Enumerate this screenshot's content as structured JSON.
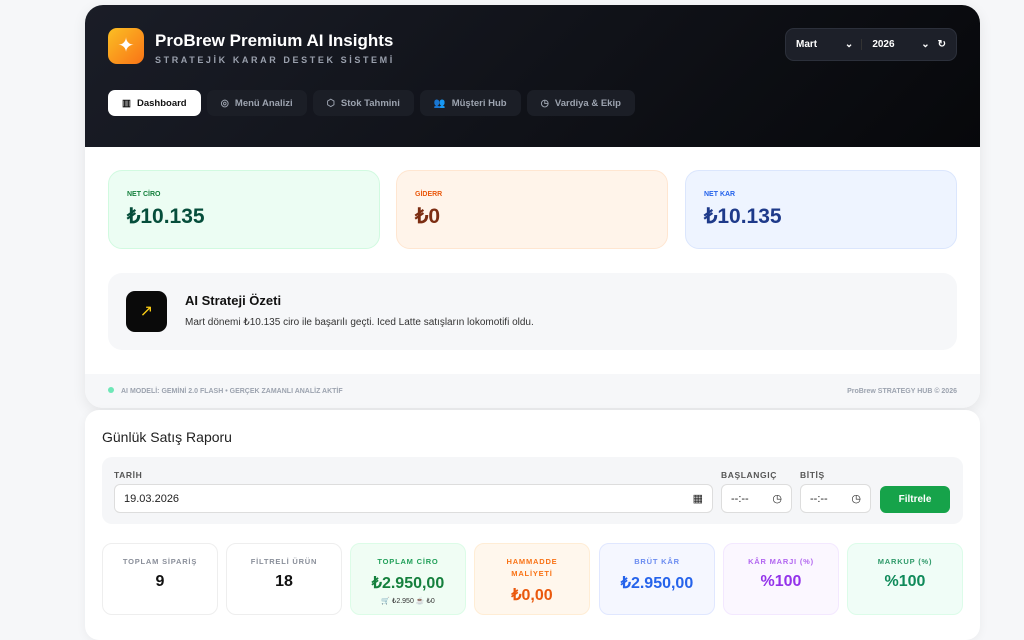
{
  "header": {
    "title": "ProBrew Premium AI Insights",
    "subtitle": "STRATEJİK KARAR DESTEK SİSTEMİ",
    "month": "Mart",
    "year": "2026"
  },
  "tabs": [
    {
      "label": "Dashboard",
      "icon": "bar-chart"
    },
    {
      "label": "Menü Analizi",
      "icon": "target"
    },
    {
      "label": "Stok Tahmini",
      "icon": "box"
    },
    {
      "label": "Müşteri Hub",
      "icon": "users"
    },
    {
      "label": "Vardiya & Ekip",
      "icon": "clock"
    }
  ],
  "kpis": [
    {
      "label": "NET CİRO",
      "value": "₺10.135"
    },
    {
      "label": "GİDERR",
      "value": "₺0"
    },
    {
      "label": "NET KAR",
      "value": "₺10.135"
    }
  ],
  "ai": {
    "title": "AI Strateji Özeti",
    "text": "Mart dönemi ₺10.135 ciro ile başarılı geçti. Iced Latte satışların lokomotifi oldu."
  },
  "footer": {
    "left": "AI MODELİ: GEMİNİ 2.0 FLASH • GERÇEK ZAMANLI ANALİZ AKTİF",
    "right": "ProBrew STRATEGY HUB © 2026"
  },
  "report": {
    "title": "Günlük Satış Raporu",
    "date_label": "TARİH",
    "date": "19.03.2026",
    "start_label": "BAŞLANGIÇ",
    "start": "--:--",
    "end_label": "BİTİŞ",
    "end": "--:--",
    "filter": "Filtrele",
    "metrics": [
      {
        "label": "TOPLAM SİPARİŞ",
        "value": "9"
      },
      {
        "label": "FİLTRELİ ÜRÜN",
        "value": "18"
      },
      {
        "label": "TOPLAM CİRO",
        "value": "₺2.950,00",
        "sub": "🛒 ₺2.950  ☕ ₺0"
      },
      {
        "label": "HAMMADDE MALİYETİ",
        "value": "₺0,00"
      },
      {
        "label": "BRÜT KÂR",
        "value": "₺2.950,00"
      },
      {
        "label": "KÂR MARJI (%)",
        "value": "%100"
      },
      {
        "label": "MARKUP (%)",
        "value": "%100"
      }
    ]
  }
}
